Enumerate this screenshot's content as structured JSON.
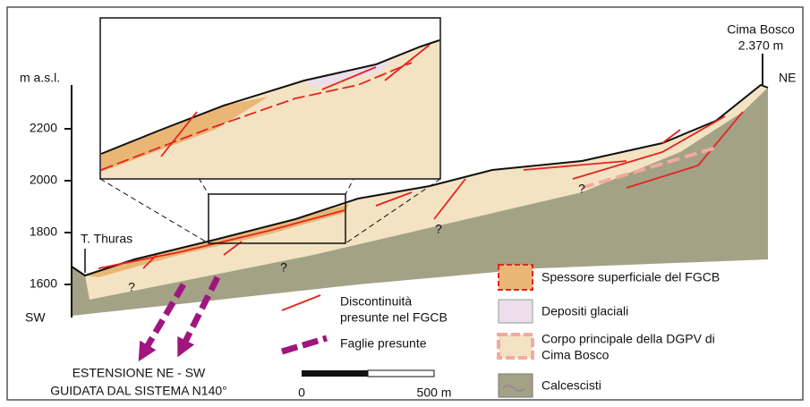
{
  "axis": {
    "label": "m a.s.l.",
    "ticks": [
      1600,
      1800,
      2000,
      2200
    ]
  },
  "labels": {
    "sw": "SW",
    "ne": "NE",
    "summit_name": "Cima Bosco",
    "summit_elevation": "2.370 m",
    "stream": "T. Thuras",
    "unknown": "?"
  },
  "annotation": {
    "line1": "ESTENSIONE NE - SW",
    "line2": "GUIDATA DAL SISTEMA N140°"
  },
  "key": {
    "discontinuities": [
      "Discontinuità",
      "presunte nel FGCB"
    ],
    "faults": "Faglie presunte"
  },
  "scale_bar": {
    "start": 0,
    "end": "500 m"
  },
  "legend": [
    {
      "label": "Spessore superficiale del FGCB"
    },
    {
      "label": "Depositi glaciali"
    },
    {
      "label": "Corpo principale della DGPV di",
      "label2": "Cima Bosco"
    },
    {
      "label": "Calcescisti"
    }
  ]
}
